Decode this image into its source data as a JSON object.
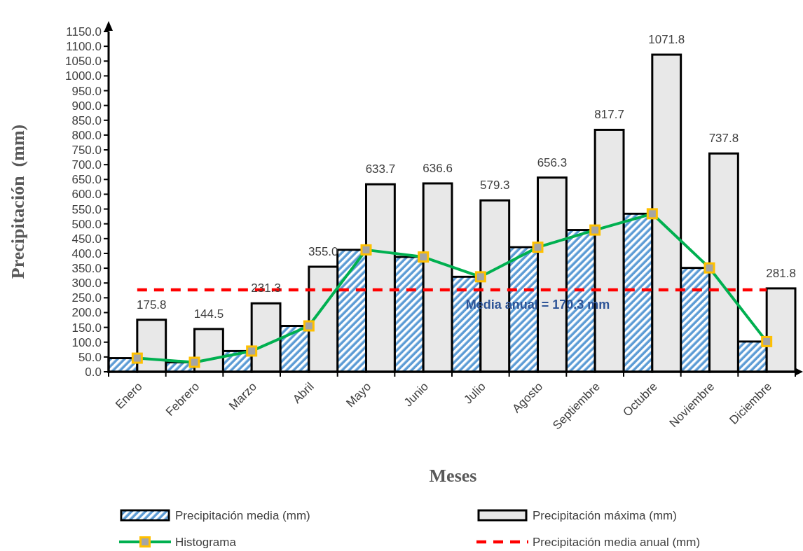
{
  "chart_data": {
    "type": "bar",
    "xlabel": "Meses",
    "ylabel": "Precipitación  (mm)",
    "categories": [
      "Enero",
      "Febrero",
      "Marzo",
      "Abril",
      "Mayo",
      "Junio",
      "Julio",
      "Agosto",
      "Septiembre",
      "Octubre",
      "Noviembre",
      "Diciembre"
    ],
    "series": [
      {
        "name": "Precipitación media (mm)",
        "type": "bar",
        "color": "#5b9bd5",
        "values": [
          46,
          32,
          70,
          155,
          412,
          388,
          321,
          421,
          479,
          534,
          351,
          102
        ]
      },
      {
        "name": "Precipitación máxima (mm)",
        "type": "bar",
        "color": "#e8e8e8",
        "values": [
          175.8,
          144.5,
          231.3,
          355.0,
          633.7,
          636.6,
          579.3,
          656.3,
          817.7,
          1071.8,
          737.8,
          281.8
        ],
        "value_labels": [
          "175.8",
          "144.5",
          "231.3",
          "355.0",
          "633.7",
          "636.6",
          "579.3",
          "656.3",
          "817.7",
          "1071.8",
          "737.8",
          "281.8"
        ]
      },
      {
        "name": "Histograma",
        "type": "line",
        "color": "#00b050",
        "marker": "square",
        "values": [
          46,
          32,
          70,
          155,
          412,
          388,
          321,
          421,
          479,
          534,
          351,
          102
        ]
      }
    ],
    "ylim": [
      0,
      1150
    ],
    "yticks": [
      {
        "value": 0,
        "label": "0.0"
      },
      {
        "value": 50,
        "label": "50.0"
      },
      {
        "value": 100,
        "label": "100.0"
      },
      {
        "value": 150,
        "label": "150.0"
      },
      {
        "value": 200,
        "label": "200.0"
      },
      {
        "value": 250,
        "label": "250.0"
      },
      {
        "value": 300,
        "label": "300.0"
      },
      {
        "value": 350,
        "label": "350.0"
      },
      {
        "value": 400,
        "label": "400.0"
      },
      {
        "value": 450,
        "label": "450.0"
      },
      {
        "value": 500,
        "label": "500.0"
      },
      {
        "value": 550,
        "label": "550.0"
      },
      {
        "value": 600,
        "label": "600.0"
      },
      {
        "value": 650,
        "label": "650.0"
      },
      {
        "value": 700,
        "label": "700.0"
      },
      {
        "value": 750,
        "label": "750.0"
      },
      {
        "value": 800,
        "label": "800.0"
      },
      {
        "value": 850,
        "label": "850.0"
      },
      {
        "value": 900,
        "label": "900.0"
      },
      {
        "value": 950,
        "label": "950.0"
      },
      {
        "value": 1000,
        "label": "1000.0"
      },
      {
        "value": 1050,
        "label": "1050.0"
      },
      {
        "value": 1100,
        "label": "1100.0"
      },
      {
        "value": 1150,
        "label": "1150.0"
      }
    ],
    "ref_lines": [
      {
        "axis": "y",
        "value": 277,
        "label": "Precipitación media anual (mm)",
        "color": "#ff0000",
        "line_style": "dashed"
      }
    ],
    "annotations": [
      {
        "text": "Media anual = 170.3 mm",
        "x": "Agosto",
        "y": 212
      }
    ],
    "legend": "bottom",
    "grid": false
  }
}
